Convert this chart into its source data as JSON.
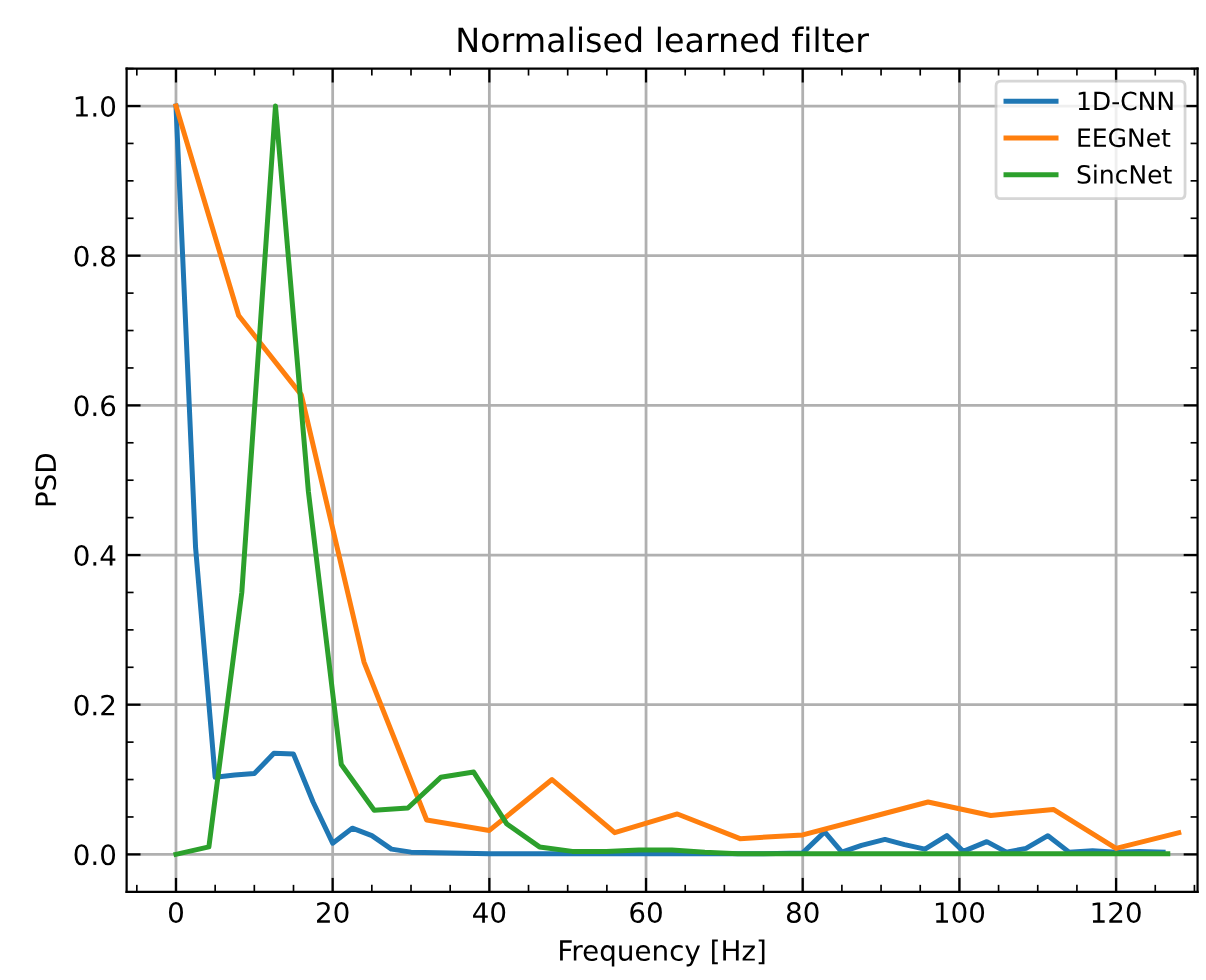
{
  "chart_data": {
    "type": "line",
    "title": "Normalised learned filter",
    "xlabel": "Frequency [Hz]",
    "ylabel": "PSD",
    "xlim": [
      -6.3,
      130.4
    ],
    "ylim": [
      -0.05,
      1.05
    ],
    "xticks": [
      0,
      20,
      40,
      60,
      80,
      100,
      120
    ],
    "yticks": [
      {
        "value": 0,
        "label": "0.0"
      },
      0.2,
      0.4,
      0.6,
      0.8,
      {
        "value": 1,
        "label": "1.0"
      }
    ],
    "grid": true,
    "legend": "top right",
    "marker": "none",
    "line_style": "solid",
    "series": [
      {
        "name": "1D-CNN",
        "color": "#1f77b4",
        "x": [
          0,
          2.5,
          5,
          7.5,
          10,
          12.5,
          15,
          17.5,
          20,
          22.5,
          25,
          27.5,
          30,
          35,
          40,
          45,
          50,
          55,
          60,
          65,
          70,
          75,
          80,
          82.8,
          85,
          87.5,
          90.5,
          93,
          95.6,
          98.4,
          100.5,
          103.5,
          106,
          108.5,
          111.3,
          114,
          117,
          120,
          123,
          126
        ],
        "values": [
          1.0,
          0.41,
          0.103,
          0.106,
          0.108,
          0.135,
          0.134,
          0.07,
          0.015,
          0.035,
          0.025,
          0.007,
          0.003,
          0.002,
          0.001,
          0.001,
          0.001,
          0.001,
          0.001,
          0.001,
          0.001,
          0.001,
          0.002,
          0.03,
          0.003,
          0.012,
          0.02,
          0.013,
          0.007,
          0.025,
          0.004,
          0.017,
          0.003,
          0.008,
          0.025,
          0.003,
          0.005,
          0.003,
          0.004,
          0.003
        ]
      },
      {
        "name": "EEGNet",
        "color": "#ff7f0e",
        "x": [
          0,
          8,
          16,
          24,
          32,
          40,
          48,
          56,
          64,
          72,
          80,
          88,
          96,
          104,
          112,
          120,
          128
        ],
        "values": [
          1.0,
          0.72,
          0.614,
          0.257,
          0.046,
          0.032,
          0.1,
          0.029,
          0.054,
          0.021,
          0.026,
          0.048,
          0.07,
          0.052,
          0.06,
          0.008,
          0.029
        ]
      },
      {
        "name": "SincNet",
        "color": "#2ca02c",
        "x": [
          0,
          4.2,
          8.4,
          12.7,
          16.9,
          21.1,
          25.3,
          29.6,
          33.8,
          38,
          42.2,
          46.4,
          50.6,
          54.9,
          59.1,
          63.3,
          67.5,
          71.7,
          76,
          80.2,
          84.4,
          88.6,
          92.9,
          97.1,
          101.3,
          105.5,
          109.7,
          114,
          118.2,
          122.4,
          126.6
        ],
        "values": [
          0.0,
          0.01,
          0.35,
          1.0,
          0.485,
          0.12,
          0.059,
          0.062,
          0.103,
          0.11,
          0.041,
          0.01,
          0.004,
          0.004,
          0.006,
          0.006,
          0.003,
          0.001,
          0.001,
          0.001,
          0.001,
          0.001,
          0.001,
          0.001,
          0.001,
          0.001,
          0.001,
          0.001,
          0.001,
          0.001,
          0.001
        ]
      }
    ]
  }
}
